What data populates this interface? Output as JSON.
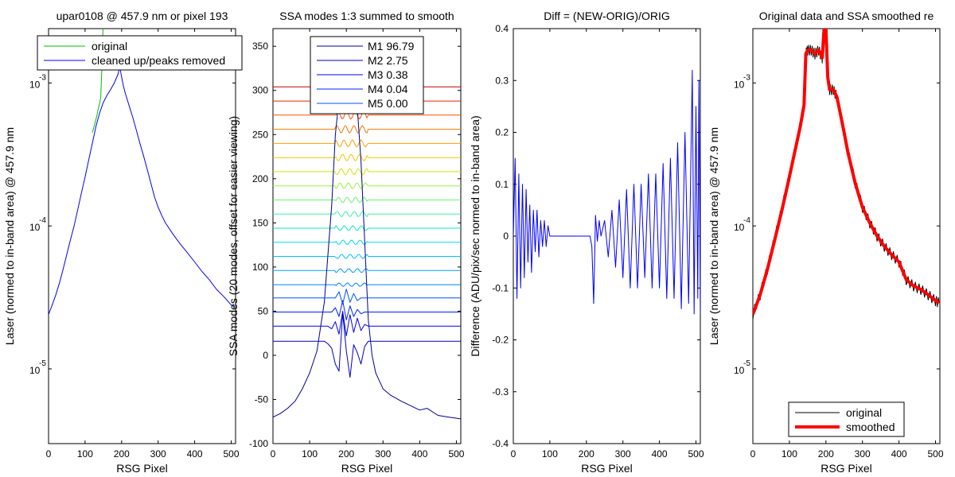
{
  "chart_data": [
    {
      "type": "line",
      "title": "upar0108 @ 457.9 nm or pixel 193",
      "xlabel": "RSG Pixel",
      "ylabel": "Laser (normed to in-band area) @ 457.9 nm",
      "xlim": [
        0,
        512
      ],
      "ylim": [
        3e-06,
        0.0024
      ],
      "y_scale": "log",
      "grid": false,
      "legend_position": "top-right",
      "xticks": [
        "0",
        "100",
        "200",
        "300",
        "400",
        "500"
      ],
      "yticks": [
        {
          "value": 1e-05,
          "base": "10",
          "exp": "-5"
        },
        {
          "value": 0.0001,
          "base": "10",
          "exp": "-4"
        },
        {
          "value": 0.001,
          "base": "10",
          "exp": "-3"
        }
      ],
      "series": [
        {
          "name": "original",
          "color": "#00c000",
          "x": [
            120,
            125,
            130,
            133,
            136,
            140,
            143,
            145,
            147,
            149
          ],
          "y": [
            0.00045,
            0.0005,
            0.00056,
            0.0006,
            0.00066,
            0.00072,
            0.0008,
            0.0011,
            0.0016,
            0.0024
          ]
        },
        {
          "name": "cleaned up/peaks removed",
          "color": "#0000ff",
          "x": [
            0,
            10,
            20,
            30,
            40,
            50,
            60,
            70,
            80,
            90,
            100,
            110,
            120,
            130,
            140,
            150,
            160,
            170,
            180,
            190,
            195,
            200,
            205,
            210,
            220,
            230,
            240,
            250,
            260,
            270,
            280,
            290,
            300,
            310,
            320,
            340,
            360,
            380,
            400,
            420,
            440,
            460,
            480,
            500,
            510
          ],
          "y": [
            2.4e-05,
            2.8e-05,
            3.3e-05,
            4e-05,
            5e-05,
            6.3e-05,
            8e-05,
            0.0001,
            0.00013,
            0.00017,
            0.00022,
            0.00029,
            0.00038,
            0.0005,
            0.00062,
            0.00073,
            0.00082,
            0.0009,
            0.001,
            0.00115,
            0.0013,
            0.0011,
            0.00095,
            0.00085,
            0.0007,
            0.00058,
            0.00047,
            0.00038,
            0.00031,
            0.00025,
            0.0002,
            0.00016,
            0.000135,
            0.000118,
            0.000105,
            8.8e-05,
            7.5e-05,
            6.5e-05,
            5.6e-05,
            4.8e-05,
            4.2e-05,
            3.6e-05,
            3.2e-05,
            2.8e-05,
            2.7e-05
          ]
        }
      ]
    },
    {
      "type": "line",
      "title": "SSA modes 1:3 summed to smooth",
      "xlabel": "RSG Pixel",
      "ylabel": "SSA modes (20 modes, offset for easier viewing)",
      "xlim": [
        0,
        512
      ],
      "ylim": [
        -100,
        370
      ],
      "grid": false,
      "legend_position": "top-center",
      "xticks": [
        "0",
        "100",
        "200",
        "300",
        "400",
        "500"
      ],
      "yticks": [
        "-100",
        "-50",
        "0",
        "50",
        "100",
        "150",
        "200",
        "250",
        "300",
        "350"
      ],
      "legend": [
        {
          "name": "M1 96.79",
          "color": "#00008f"
        },
        {
          "name": "M2 2.75",
          "color": "#0000bf"
        },
        {
          "name": "M3 0.38",
          "color": "#0000ef"
        },
        {
          "name": "M4 0.04",
          "color": "#0020ff"
        },
        {
          "name": "M5 0.00",
          "color": "#0050ff"
        }
      ],
      "series": [
        {
          "name": "M1 96.79",
          "color": "#00008f",
          "x": [
            0,
            20,
            40,
            60,
            80,
            100,
            120,
            140,
            160,
            170,
            180,
            190,
            195,
            200,
            210,
            220,
            230,
            240,
            250,
            260,
            270,
            280,
            300,
            320,
            350,
            380,
            400,
            420,
            450,
            480,
            512
          ],
          "y": [
            -70,
            -66,
            -60,
            -52,
            -38,
            -20,
            5,
            60,
            170,
            250,
            290,
            300,
            300,
            300,
            300,
            300,
            280,
            220,
            130,
            40,
            0,
            -20,
            -38,
            -45,
            -52,
            -58,
            -62,
            -60,
            -68,
            -70,
            -72
          ]
        },
        {
          "name": "M2 2.75",
          "color": "#0000bf",
          "x": [
            0,
            140,
            150,
            160,
            170,
            180,
            190,
            200,
            210,
            220,
            230,
            240,
            250,
            260,
            270,
            512
          ],
          "y": [
            16,
            16,
            13,
            8,
            -10,
            -18,
            48,
            5,
            -25,
            12,
            3,
            -10,
            10,
            16,
            16,
            16
          ]
        },
        {
          "name": "M3 0.38",
          "color": "#0000ef",
          "x": [
            0,
            150,
            160,
            170,
            180,
            190,
            200,
            210,
            220,
            230,
            240,
            250,
            260,
            512
          ],
          "y": [
            33,
            33,
            30,
            38,
            24,
            50,
            22,
            46,
            26,
            42,
            28,
            35,
            33,
            33
          ]
        },
        {
          "name": "M4 0.04",
          "color": "#0020ff",
          "x": [
            0,
            160,
            170,
            180,
            190,
            200,
            210,
            220,
            230,
            240,
            250,
            512
          ],
          "y": [
            49,
            49,
            54,
            44,
            62,
            40,
            56,
            44,
            52,
            47,
            49,
            49
          ]
        },
        {
          "name": "M5 0.00",
          "color": "#0050ff",
          "x": [
            0,
            170,
            180,
            190,
            200,
            210,
            220,
            230,
            240,
            512
          ],
          "y": [
            65,
            65,
            72,
            58,
            75,
            60,
            70,
            62,
            65,
            65
          ]
        }
      ],
      "offset_modes": [
        {
          "y": 80,
          "color": "#0080ff"
        },
        {
          "y": 96,
          "color": "#00a0ff"
        },
        {
          "y": 112,
          "color": "#00c0ff"
        },
        {
          "y": 128,
          "color": "#00d8e8"
        },
        {
          "y": 144,
          "color": "#10e8c8"
        },
        {
          "y": 160,
          "color": "#40f0a0"
        },
        {
          "y": 176,
          "color": "#70f070"
        },
        {
          "y": 192,
          "color": "#a0f040"
        },
        {
          "y": 208,
          "color": "#d0e800"
        },
        {
          "y": 224,
          "color": "#f0c800"
        },
        {
          "y": 240,
          "color": "#ffa000"
        },
        {
          "y": 256,
          "color": "#ff7800"
        },
        {
          "y": 272,
          "color": "#ff5000"
        },
        {
          "y": 288,
          "color": "#e82800"
        },
        {
          "y": 304,
          "color": "#c00000"
        }
      ]
    },
    {
      "type": "line",
      "title": "Diff = (NEW-ORIG)/ORIG",
      "xlabel": "RSG Pixel",
      "ylabel": "Difference (ADU/pix/sec normed to in-band area)",
      "xlim": [
        0,
        512
      ],
      "ylim": [
        -0.4,
        0.4
      ],
      "grid": false,
      "xticks": [
        "0",
        "100",
        "200",
        "300",
        "400",
        "500"
      ],
      "yticks": [
        "-0.4",
        "-0.3",
        "-0.2",
        "-0.1",
        "0",
        "0.1",
        "0.2",
        "0.3",
        "0.4"
      ],
      "series": [
        {
          "name": "",
          "color": "#0000ff",
          "x": [
            0,
            5,
            10,
            15,
            20,
            25,
            30,
            35,
            40,
            45,
            50,
            55,
            60,
            65,
            70,
            75,
            80,
            85,
            90,
            95,
            100,
            110,
            120,
            130,
            140,
            150,
            160,
            170,
            180,
            190,
            200,
            210,
            215,
            220,
            225,
            230,
            235,
            240,
            250,
            260,
            270,
            280,
            290,
            300,
            310,
            320,
            330,
            340,
            350,
            360,
            370,
            380,
            390,
            400,
            410,
            420,
            430,
            440,
            450,
            460,
            470,
            480,
            490,
            495,
            500,
            505,
            508,
            512
          ],
          "y": [
            0.0,
            0.15,
            -0.12,
            0.12,
            -0.1,
            0.1,
            -0.08,
            0.09,
            -0.05,
            0.06,
            -0.07,
            0.05,
            -0.03,
            0.05,
            -0.04,
            0.03,
            -0.02,
            0.03,
            -0.02,
            0.02,
            0.0,
            0.0,
            0.0,
            0.0,
            0.0,
            0.0,
            0.0,
            0.0,
            0.0,
            0.0,
            0.0,
            0.0,
            -0.02,
            -0.13,
            0.04,
            -0.01,
            0.03,
            0.0,
            0.03,
            -0.04,
            0.05,
            -0.06,
            0.07,
            -0.08,
            0.09,
            -0.1,
            0.1,
            -0.1,
            0.1,
            -0.08,
            0.12,
            -0.1,
            0.12,
            -0.1,
            0.14,
            -0.12,
            0.15,
            -0.12,
            0.18,
            -0.14,
            0.2,
            -0.13,
            0.32,
            -0.15,
            0.25,
            -0.12,
            0.3,
            -0.15
          ]
        }
      ]
    },
    {
      "type": "line",
      "title": "Original data and SSA smoothed re",
      "xlabel": "RSG Pixel",
      "ylabel": "Laser (normed to in-band area) @ 457.9 nm",
      "xlim": [
        0,
        512
      ],
      "ylim": [
        3e-06,
        0.0024
      ],
      "y_scale": "log",
      "grid": false,
      "legend_position": "bottom-center",
      "xticks": [
        "0",
        "100",
        "200",
        "300",
        "400",
        "500"
      ],
      "yticks": [
        {
          "value": 1e-05,
          "base": "10",
          "exp": "-5"
        },
        {
          "value": 0.0001,
          "base": "10",
          "exp": "-4"
        },
        {
          "value": 0.001,
          "base": "10",
          "exp": "-3"
        }
      ],
      "series": [
        {
          "name": "original",
          "color": "#000000",
          "x": [
            0,
            20,
            40,
            60,
            80,
            100,
            110,
            120,
            130,
            140,
            145,
            150,
            160,
            170,
            180,
            190,
            195,
            200,
            205,
            210,
            220,
            230,
            240,
            250,
            260,
            280,
            300,
            320,
            340,
            360,
            380,
            400,
            420,
            440,
            460,
            480,
            500,
            510
          ],
          "y": [
            2.4e-05,
            3.3e-05,
            5e-05,
            8e-05,
            0.00013,
            0.00022,
            0.00029,
            0.00038,
            0.0005,
            0.0007,
            0.0016,
            0.0017,
            0.0017,
            0.0016,
            0.0017,
            0.0015,
            0.0024,
            0.0024,
            0.0011,
            0.0009,
            0.0009,
            0.0008,
            0.0006,
            0.00045,
            0.00033,
            0.0002,
            0.000135,
            0.000105,
            8.5e-05,
            7.2e-05,
            6.3e-05,
            5.6e-05,
            4.2e-05,
            3.8e-05,
            3.6e-05,
            3.3e-05,
            3e-05,
            2.9e-05
          ]
        },
        {
          "name": "smoothed",
          "color": "#ff0000",
          "x": [
            0,
            20,
            40,
            60,
            80,
            100,
            110,
            120,
            130,
            140,
            145,
            150,
            160,
            170,
            180,
            190,
            195,
            200,
            205,
            210,
            220,
            230,
            240,
            250,
            260,
            280,
            300,
            320,
            340,
            360,
            380,
            400,
            420,
            440,
            460,
            480,
            500,
            510
          ],
          "y": [
            2.4e-05,
            3.3e-05,
            5e-05,
            8e-05,
            0.00013,
            0.00022,
            0.00029,
            0.00038,
            0.0005,
            0.0007,
            0.0016,
            0.0017,
            0.0017,
            0.0016,
            0.0017,
            0.0015,
            0.0024,
            0.0024,
            0.0011,
            0.0009,
            0.0009,
            0.0008,
            0.0006,
            0.00045,
            0.00033,
            0.0002,
            0.000135,
            0.000105,
            8.5e-05,
            7.2e-05,
            6.3e-05,
            5.6e-05,
            4.2e-05,
            3.8e-05,
            3.6e-05,
            3.3e-05,
            3e-05,
            2.9e-05
          ]
        }
      ]
    }
  ]
}
